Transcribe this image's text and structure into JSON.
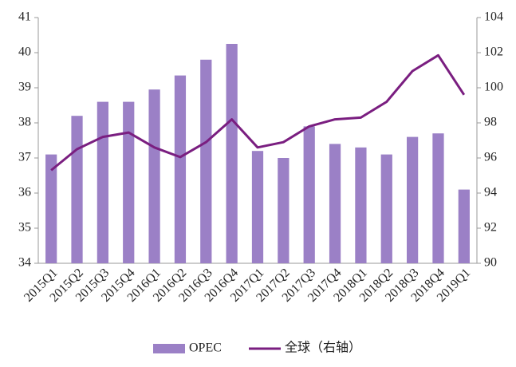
{
  "chart_data": {
    "type": "bar_line",
    "categories": [
      "2015Q1",
      "2015Q2",
      "2015Q3",
      "2015Q4",
      "2016Q1",
      "2016Q2",
      "2016Q3",
      "2016Q4",
      "2017Q1",
      "2017Q2",
      "2017Q3",
      "2017Q4",
      "2018Q1",
      "2018Q2",
      "2018Q3",
      "2018Q4",
      "2019Q1"
    ],
    "series": [
      {
        "name": "OPEC",
        "type": "bar",
        "color": "#9b80c6",
        "values": [
          37.1,
          38.2,
          38.6,
          38.6,
          38.95,
          39.35,
          39.8,
          40.25,
          37.2,
          37.0,
          37.9,
          37.4,
          37.3,
          37.1,
          37.6,
          37.7,
          36.1
        ]
      },
      {
        "name": "全球（右轴）",
        "type": "line",
        "axis": "y2",
        "color": "#7a1e80",
        "values": [
          95.3,
          96.5,
          97.2,
          97.45,
          96.6,
          96.05,
          96.9,
          98.2,
          96.6,
          96.9,
          97.8,
          98.2,
          98.3,
          99.2,
          100.95,
          101.85,
          99.6
        ]
      }
    ],
    "ylim": [
      34,
      41
    ],
    "yticks": [
      34,
      35,
      36,
      37,
      38,
      39,
      40,
      41
    ],
    "y2lim": [
      90,
      104
    ],
    "y2ticks": [
      90,
      92,
      94,
      96,
      98,
      100,
      102,
      104
    ],
    "legend": "bottom"
  }
}
